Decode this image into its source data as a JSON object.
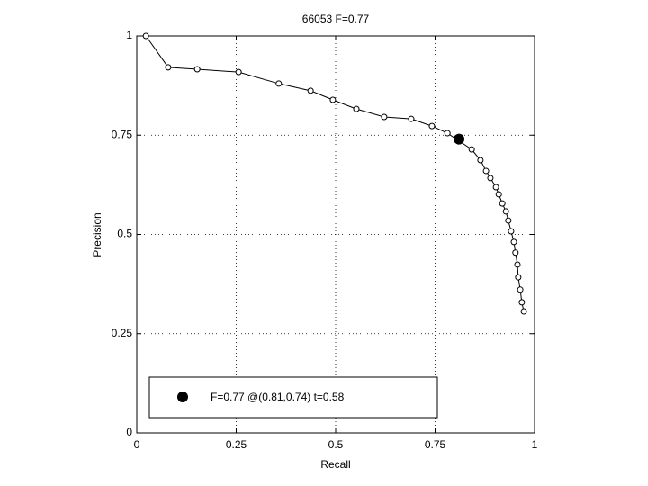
{
  "chart_data": {
    "type": "line",
    "title": "66053 F=0.77",
    "xlabel": "Recall",
    "ylabel": "Precision",
    "x": [
      0.023,
      0.079,
      0.152,
      0.256,
      0.357,
      0.437,
      0.493,
      0.552,
      0.622,
      0.69,
      0.742,
      0.781,
      0.842,
      0.864,
      0.878,
      0.889,
      0.903,
      0.91,
      0.919,
      0.928,
      0.934,
      0.941,
      0.948,
      0.952,
      0.957,
      0.959,
      0.964,
      0.968,
      0.973
    ],
    "values": [
      1.0,
      0.921,
      0.916,
      0.909,
      0.88,
      0.862,
      0.839,
      0.816,
      0.796,
      0.791,
      0.773,
      0.755,
      0.714,
      0.687,
      0.66,
      0.642,
      0.619,
      0.601,
      0.578,
      0.558,
      0.535,
      0.508,
      0.481,
      0.454,
      0.424,
      0.392,
      0.361,
      0.329,
      0.306
    ],
    "color": "#000000",
    "best_point": {
      "x": 0.81,
      "y": 0.74,
      "label": "F=0.77 @(0.81,0.74) t=0.58"
    },
    "xlim": [
      0,
      1
    ],
    "ylim": [
      0,
      1
    ],
    "xticks": [
      0,
      0.25,
      0.5,
      0.75,
      1
    ],
    "yticks": [
      0,
      0.25,
      0.5,
      0.75,
      1
    ],
    "grid": true
  }
}
